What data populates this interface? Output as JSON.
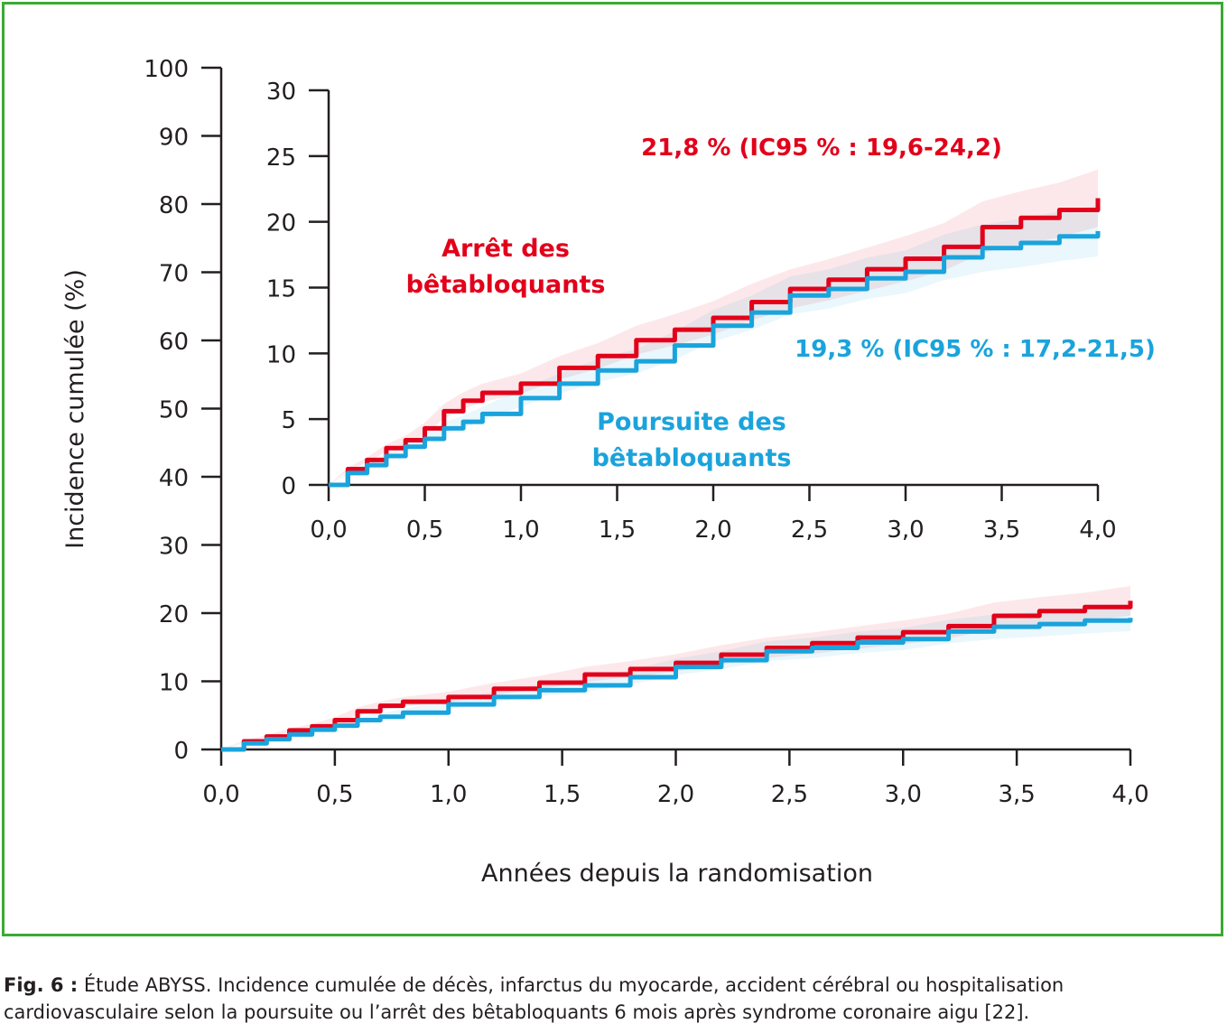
{
  "colors": {
    "frame": "#3aaa35",
    "arret": "#e2001a",
    "poursuite": "#1aa3dc",
    "axis": "#231f20"
  },
  "caption": {
    "label": "Fig. 6 :",
    "text": "Étude ABYSS. Incidence cumulée de décès, infarctus du myocarde, accident cérébral ou hospitalisation cardiovasculaire selon la poursuite ou l’arrêt des bêtabloquants 6 mois après syndrome coronaire aigu [22]."
  },
  "chart_data": [
    {
      "type": "line",
      "ylabel": "Incidence cumulée (%)",
      "xlabel": "Années depuis la randomisation",
      "xlim": [
        0,
        4
      ],
      "ylim": [
        0,
        100
      ],
      "xticks": [
        "0,0",
        "0,5",
        "1,0",
        "1,5",
        "2,0",
        "2,5",
        "3,0",
        "3,5",
        "4,0"
      ],
      "yticks": [
        "0",
        "10",
        "20",
        "30",
        "40",
        "50",
        "60",
        "70",
        "80",
        "90",
        "100"
      ],
      "confidence_bands": true,
      "series": [
        {
          "name": "Arrêt des bêtabloquants",
          "color": "#e2001a",
          "x": [
            0,
            0.1,
            0.2,
            0.3,
            0.4,
            0.5,
            0.6,
            0.7,
            0.8,
            1.0,
            1.2,
            1.4,
            1.6,
            1.8,
            2.0,
            2.2,
            2.4,
            2.6,
            2.8,
            3.0,
            3.2,
            3.4,
            3.6,
            3.8,
            4.0
          ],
          "y": [
            0,
            1.2,
            1.9,
            2.8,
            3.4,
            4.3,
            5.6,
            6.4,
            7.0,
            7.7,
            8.9,
            9.8,
            11.0,
            11.8,
            12.7,
            13.9,
            14.9,
            15.6,
            16.4,
            17.2,
            18.1,
            19.6,
            20.3,
            20.9,
            21.8
          ]
        },
        {
          "name": "Poursuite des bêtabloquants",
          "color": "#1aa3dc",
          "x": [
            0,
            0.1,
            0.2,
            0.3,
            0.4,
            0.5,
            0.6,
            0.7,
            0.8,
            1.0,
            1.2,
            1.4,
            1.6,
            1.8,
            2.0,
            2.2,
            2.4,
            2.6,
            2.8,
            3.0,
            3.2,
            3.4,
            3.6,
            3.8,
            4.0
          ],
          "y": [
            0,
            0.9,
            1.5,
            2.2,
            2.9,
            3.5,
            4.3,
            4.8,
            5.4,
            6.6,
            7.7,
            8.7,
            9.4,
            10.6,
            12.1,
            13.1,
            14.4,
            14.9,
            15.7,
            16.2,
            17.3,
            18.0,
            18.4,
            18.9,
            19.3
          ]
        }
      ]
    },
    {
      "type": "line",
      "inset": true,
      "xlim": [
        0,
        4
      ],
      "ylim": [
        0,
        30
      ],
      "xticks": [
        "0,0",
        "0,5",
        "1,0",
        "1,5",
        "2,0",
        "2,5",
        "3,0",
        "3,5",
        "4,0"
      ],
      "yticks": [
        "0",
        "5",
        "10",
        "15",
        "20",
        "25",
        "30"
      ],
      "confidence_bands": true,
      "series": [
        {
          "name": "Arrêt des bêtabloquants",
          "label_lines": [
            "Arrêt des",
            "bêtabloquants"
          ],
          "end_label": "21,8 % (IC95 % : 19,6-24,2)",
          "color": "#e2001a",
          "x": [
            0,
            0.1,
            0.2,
            0.3,
            0.4,
            0.5,
            0.6,
            0.7,
            0.8,
            1.0,
            1.2,
            1.4,
            1.6,
            1.8,
            2.0,
            2.2,
            2.4,
            2.6,
            2.8,
            3.0,
            3.2,
            3.4,
            3.6,
            3.8,
            4.0
          ],
          "y": [
            0,
            1.2,
            1.9,
            2.8,
            3.4,
            4.3,
            5.6,
            6.4,
            7.0,
            7.7,
            8.9,
            9.8,
            11.0,
            11.8,
            12.7,
            13.9,
            14.9,
            15.6,
            16.4,
            17.2,
            18.1,
            19.6,
            20.3,
            20.9,
            21.8
          ]
        },
        {
          "name": "Poursuite des bêtabloquants",
          "label_lines": [
            "Poursuite des",
            "bêtabloquants"
          ],
          "end_label": "19,3 % (IC95 % : 17,2-21,5)",
          "color": "#1aa3dc",
          "x": [
            0,
            0.1,
            0.2,
            0.3,
            0.4,
            0.5,
            0.6,
            0.7,
            0.8,
            1.0,
            1.2,
            1.4,
            1.6,
            1.8,
            2.0,
            2.2,
            2.4,
            2.6,
            2.8,
            3.0,
            3.2,
            3.4,
            3.6,
            3.8,
            4.0
          ],
          "y": [
            0,
            0.9,
            1.5,
            2.2,
            2.9,
            3.5,
            4.3,
            4.8,
            5.4,
            6.6,
            7.7,
            8.7,
            9.4,
            10.6,
            12.1,
            13.1,
            14.4,
            14.9,
            15.7,
            16.2,
            17.3,
            18.0,
            18.4,
            18.9,
            19.3
          ]
        }
      ]
    }
  ]
}
